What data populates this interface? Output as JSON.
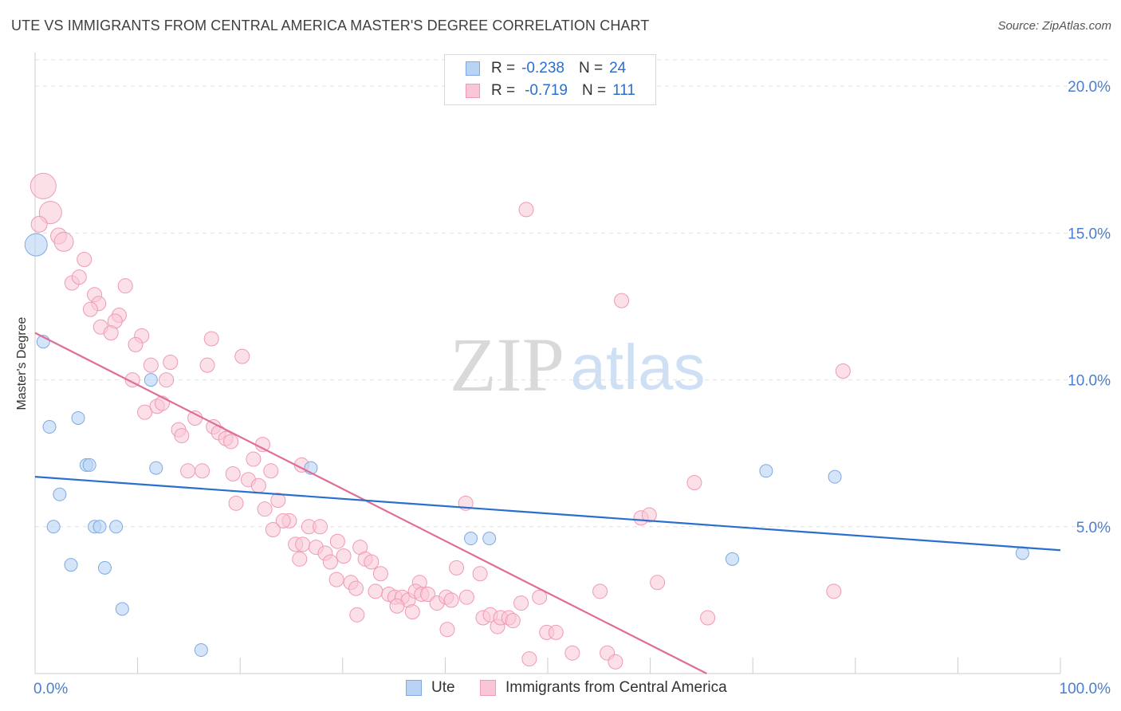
{
  "title": "UTE VS IMMIGRANTS FROM CENTRAL AMERICA MASTER'S DEGREE CORRELATION CHART",
  "source": "Source: ZipAtlas.com",
  "watermark": {
    "zip": "ZIP",
    "atlas": "atlas"
  },
  "legend": {
    "ute": {
      "r_label": "R =",
      "r_value": "-0.238",
      "n_label": "N =",
      "n_value": "24"
    },
    "immigrants": {
      "r_label": "R =",
      "r_value": "-0.719",
      "n_label": "N =",
      "n_value": "111"
    }
  },
  "bottom_legend": {
    "ute": "Ute",
    "immigrants": "Immigrants from Central America"
  },
  "colors": {
    "ute_fill": "#b9d3f5",
    "ute_stroke": "#7fa9e0",
    "ute_line": "#2a6fce",
    "imm_fill": "#f9c6d5",
    "imm_stroke": "#ee9ab5",
    "imm_line": "#e06d96",
    "tick_label": "#4a7fd0",
    "grid": "#e2e2e2"
  },
  "chart_data": {
    "type": "scatter",
    "title": "UTE VS IMMIGRANTS FROM CENTRAL AMERICA MASTER'S DEGREE CORRELATION CHART",
    "xlabel": "",
    "ylabel": "Master's Degree",
    "xlim": [
      0,
      100
    ],
    "ylim": [
      0,
      20.9
    ],
    "x_tick_labels": [
      {
        "value": 0,
        "label": "0.0%"
      },
      {
        "value": 100,
        "label": "100.0%"
      }
    ],
    "y_tick_labels": [
      {
        "value": 5,
        "label": "5.0%"
      },
      {
        "value": 10,
        "label": "10.0%"
      },
      {
        "value": 15,
        "label": "15.0%"
      },
      {
        "value": 20,
        "label": "20.0%"
      }
    ],
    "series": [
      {
        "name": "Ute",
        "trend": [
          [
            0,
            6.7
          ],
          [
            100,
            4.2
          ]
        ],
        "points": [
          [
            0.1,
            14.6,
            14
          ],
          [
            0.8,
            11.3,
            8
          ],
          [
            1.4,
            8.4,
            8
          ],
          [
            1.8,
            5.0,
            8
          ],
          [
            2.4,
            6.1,
            8
          ],
          [
            3.5,
            3.7,
            8
          ],
          [
            4.2,
            8.7,
            8
          ],
          [
            5.0,
            7.1,
            8
          ],
          [
            5.3,
            7.1,
            8
          ],
          [
            5.8,
            5.0,
            8
          ],
          [
            6.3,
            5.0,
            8
          ],
          [
            6.8,
            3.6,
            8
          ],
          [
            7.9,
            5.0,
            8
          ],
          [
            8.5,
            2.2,
            8
          ],
          [
            11.3,
            10.0,
            8
          ],
          [
            11.8,
            7.0,
            8
          ],
          [
            16.2,
            0.8,
            8
          ],
          [
            26.9,
            7.0,
            8
          ],
          [
            42.5,
            4.6,
            8
          ],
          [
            44.3,
            4.6,
            8
          ],
          [
            68.0,
            3.9,
            8
          ],
          [
            71.3,
            6.9,
            8
          ],
          [
            78.0,
            6.7,
            8
          ],
          [
            96.3,
            4.1,
            8
          ]
        ]
      },
      {
        "name": "Immigrants from Central America",
        "trend": [
          [
            0,
            11.6
          ],
          [
            65.5,
            0
          ]
        ],
        "points": [
          [
            0.8,
            16.6,
            16
          ],
          [
            1.5,
            15.7,
            14
          ],
          [
            0.4,
            15.3,
            10
          ],
          [
            2.3,
            14.9,
            10
          ],
          [
            2.8,
            14.7,
            12
          ],
          [
            4.8,
            14.1,
            9
          ],
          [
            3.6,
            13.3,
            9
          ],
          [
            4.3,
            13.5,
            9
          ],
          [
            8.8,
            13.2,
            9
          ],
          [
            5.8,
            12.9,
            9
          ],
          [
            6.2,
            12.6,
            9
          ],
          [
            5.4,
            12.4,
            9
          ],
          [
            8.2,
            12.2,
            9
          ],
          [
            7.8,
            12.0,
            9
          ],
          [
            6.4,
            11.8,
            9
          ],
          [
            7.4,
            11.6,
            9
          ],
          [
            10.4,
            11.5,
            9
          ],
          [
            9.8,
            11.2,
            9
          ],
          [
            17.2,
            11.4,
            9
          ],
          [
            11.3,
            10.5,
            9
          ],
          [
            13.2,
            10.6,
            9
          ],
          [
            16.8,
            10.5,
            9
          ],
          [
            20.2,
            10.8,
            9
          ],
          [
            9.5,
            10.0,
            9
          ],
          [
            12.8,
            10.0,
            9
          ],
          [
            10.7,
            8.9,
            9
          ],
          [
            11.9,
            9.1,
            9
          ],
          [
            12.4,
            9.2,
            9
          ],
          [
            15.6,
            8.7,
            9
          ],
          [
            14.0,
            8.3,
            9
          ],
          [
            14.3,
            8.1,
            9
          ],
          [
            17.4,
            8.4,
            9
          ],
          [
            17.9,
            8.2,
            9
          ],
          [
            18.6,
            8.0,
            9
          ],
          [
            19.1,
            7.9,
            9
          ],
          [
            21.3,
            7.3,
            9
          ],
          [
            14.9,
            6.9,
            9
          ],
          [
            16.3,
            6.9,
            9
          ],
          [
            19.3,
            6.8,
            9
          ],
          [
            20.8,
            6.6,
            9
          ],
          [
            21.8,
            6.4,
            9
          ],
          [
            23.0,
            6.9,
            9
          ],
          [
            19.6,
            5.8,
            9
          ],
          [
            22.4,
            5.6,
            9
          ],
          [
            23.7,
            5.9,
            9
          ],
          [
            24.8,
            5.2,
            9
          ],
          [
            24.2,
            5.2,
            9
          ],
          [
            23.2,
            4.9,
            9
          ],
          [
            26.7,
            5.0,
            9
          ],
          [
            27.8,
            5.0,
            9
          ],
          [
            25.4,
            4.4,
            9
          ],
          [
            26.1,
            4.4,
            9
          ],
          [
            27.4,
            4.3,
            9
          ],
          [
            28.3,
            4.1,
            9
          ],
          [
            29.5,
            4.5,
            9
          ],
          [
            30.1,
            4.0,
            9
          ],
          [
            31.7,
            4.3,
            9
          ],
          [
            25.8,
            3.9,
            9
          ],
          [
            28.8,
            3.8,
            9
          ],
          [
            32.2,
            3.9,
            9
          ],
          [
            32.8,
            3.8,
            9
          ],
          [
            33.7,
            3.4,
            9
          ],
          [
            30.8,
            3.1,
            9
          ],
          [
            31.3,
            2.9,
            9
          ],
          [
            33.2,
            2.8,
            9
          ],
          [
            34.5,
            2.7,
            9
          ],
          [
            35.1,
            2.6,
            9
          ],
          [
            35.8,
            2.6,
            9
          ],
          [
            36.4,
            2.5,
            9
          ],
          [
            37.5,
            3.1,
            9
          ],
          [
            37.1,
            2.8,
            9
          ],
          [
            37.7,
            2.7,
            9
          ],
          [
            38.3,
            2.7,
            9
          ],
          [
            39.2,
            2.4,
            9
          ],
          [
            40.1,
            2.6,
            9
          ],
          [
            40.6,
            2.5,
            9
          ],
          [
            41.1,
            3.6,
            9
          ],
          [
            42.1,
            2.6,
            9
          ],
          [
            43.4,
            3.4,
            9
          ],
          [
            35.3,
            2.3,
            9
          ],
          [
            36.8,
            2.1,
            9
          ],
          [
            31.4,
            2.0,
            9
          ],
          [
            43.7,
            1.9,
            9
          ],
          [
            44.4,
            2.0,
            9
          ],
          [
            45.1,
            1.6,
            9
          ],
          [
            45.4,
            1.9,
            9
          ],
          [
            46.2,
            1.9,
            9
          ],
          [
            46.6,
            1.8,
            9
          ],
          [
            47.4,
            2.4,
            9
          ],
          [
            49.2,
            2.6,
            9
          ],
          [
            40.2,
            1.5,
            9
          ],
          [
            49.9,
            1.4,
            9
          ],
          [
            50.8,
            1.4,
            9
          ],
          [
            48.2,
            0.5,
            9
          ],
          [
            52.4,
            0.7,
            9
          ],
          [
            55.8,
            0.7,
            9
          ],
          [
            56.6,
            0.4,
            9
          ],
          [
            55.1,
            2.8,
            9
          ],
          [
            59.1,
            5.3,
            9
          ],
          [
            59.9,
            5.4,
            9
          ],
          [
            64.3,
            6.5,
            9
          ],
          [
            65.6,
            1.9,
            9
          ],
          [
            60.7,
            3.1,
            9
          ],
          [
            47.9,
            15.8,
            9
          ],
          [
            57.2,
            12.7,
            9
          ],
          [
            78.8,
            10.3,
            9
          ],
          [
            77.9,
            2.8,
            9
          ],
          [
            42.0,
            5.8,
            9
          ],
          [
            26.0,
            7.1,
            9
          ],
          [
            22.2,
            7.8,
            9
          ],
          [
            29.4,
            3.2,
            9
          ]
        ]
      }
    ]
  }
}
